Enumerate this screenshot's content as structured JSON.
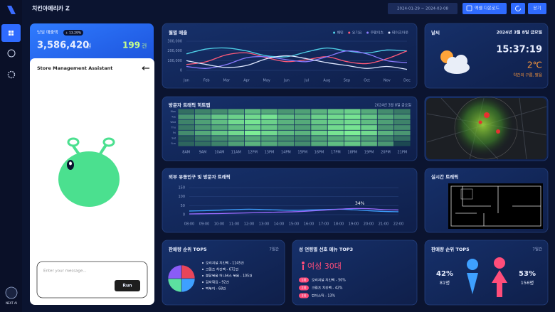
{
  "header": {
    "title": "치킨아메리카 Z",
    "date_range": "2024-01-29 ~ 2024-03-08",
    "excel_button": "엑셀 다운로드",
    "close_button": "닫기"
  },
  "sidebar": {
    "brand": "NEXT AI"
  },
  "sales_card": {
    "label": "당일 매출액",
    "change": "+ 13.29%",
    "amount": "3,586,420",
    "amount_unit": "원",
    "count": "199",
    "count_unit": "건"
  },
  "assistant": {
    "title": "Store Management Assistant",
    "placeholder": "Enter your message...",
    "run_button": "Run"
  },
  "weather": {
    "title": "날씨",
    "date": "2024년 3월 8일 금요일",
    "time": "15:37:19",
    "temperature": "2℃",
    "condition": "약간의 구름, 맑음"
  },
  "map_panel": {},
  "realtime": {
    "title": "실시간 트래픽"
  },
  "top5": {
    "title": "판매량 순위 TOP5",
    "period": "7일간",
    "items": [
      "오리지널 치킨팩 - 1145건",
      "크림즈 치킨팩 - 672건",
      "불닭볶음 허니버스 볶음 - 105건",
      "감자튀김 - 92건",
      "떡볶이 - 68건"
    ]
  },
  "preference": {
    "title": "성 연령별 선호 메뉴 TOP3",
    "segment": "여성 30대",
    "ranks": [
      {
        "rank": "1위",
        "text": "오리지널 치킨팩 - 50%"
      },
      {
        "rank": "2위",
        "text": "크림즈 치킨팩 - 42%"
      },
      {
        "rank": "3위",
        "text": "런더스틱 - 13%"
      }
    ]
  },
  "gender": {
    "title": "판매량 순위 TOP5",
    "period": "7일간",
    "male_pct": "42%",
    "male_count": "81명",
    "female_pct": "53%",
    "female_count": "156명"
  },
  "chart_data": [
    {
      "type": "line",
      "title": "월별 매출",
      "categories": [
        "Jan",
        "Feb",
        "Mar",
        "Apr",
        "May",
        "Jun",
        "Jul",
        "Aug",
        "Sep",
        "Oct",
        "Nov",
        "Dec"
      ],
      "series": [
        {
          "name": "배민",
          "color": "#4fd1e8",
          "values": [
            170000,
            220000,
            230000,
            200000,
            150000,
            140000,
            190000,
            230000,
            200000,
            180000,
            210000,
            200000
          ]
        },
        {
          "name": "요기요",
          "color": "#ff5a7a",
          "values": [
            60000,
            90000,
            160000,
            180000,
            130000,
            90000,
            110000,
            140000,
            90000,
            70000,
            120000,
            200000
          ]
        },
        {
          "name": "쿠팡이츠",
          "color": "#8a7bff",
          "values": [
            40000,
            20000,
            60000,
            130000,
            140000,
            110000,
            90000,
            140000,
            200000,
            170000,
            100000,
            80000
          ]
        },
        {
          "name": "테이크아웃",
          "color": "#dfe8ff",
          "values": [
            100000,
            60000,
            30000,
            50000,
            120000,
            150000,
            120000,
            80000,
            50000,
            20000,
            40000,
            10000
          ]
        }
      ],
      "ylim": [
        0,
        300000
      ],
      "yticks": [
        0,
        {
          "value": 100000,
          "label": "100,000"
        },
        {
          "value": 200000,
          "label": "200,000"
        },
        {
          "value": 300000,
          "label": "300,000"
        }
      ],
      "grid": true
    },
    {
      "type": "heatmap",
      "title": "방문자 트래픽 히트맵",
      "subtitle": "2024년 3월 8일 금요일",
      "categories": [
        "8AM",
        "9AM",
        "10AM",
        "11AM",
        "12PM",
        "13PM",
        "14PM",
        "15PM",
        "16PM",
        "17PM",
        "18PM",
        "19PM",
        "20PM",
        "21PM"
      ],
      "rows": [
        "Mon",
        "Tue",
        "Wed",
        "Thu",
        "Fri",
        "Sat",
        "Sun"
      ],
      "values": [
        [
          30,
          40,
          45,
          55,
          70,
          60,
          50,
          55,
          65,
          75,
          80,
          60,
          45,
          35
        ],
        [
          50,
          60,
          75,
          80,
          85,
          90,
          70,
          65,
          80,
          85,
          90,
          75,
          60,
          50
        ],
        [
          40,
          55,
          70,
          85,
          90,
          80,
          65,
          60,
          75,
          80,
          85,
          70,
          55,
          40
        ],
        [
          35,
          50,
          60,
          70,
          80,
          75,
          60,
          55,
          70,
          85,
          90,
          80,
          50,
          45
        ],
        [
          45,
          60,
          75,
          85,
          95,
          85,
          70,
          65,
          80,
          90,
          95,
          85,
          65,
          50
        ],
        [
          20,
          35,
          45,
          50,
          60,
          55,
          45,
          40,
          55,
          60,
          70,
          55,
          40,
          30
        ],
        [
          25,
          30,
          40,
          55,
          65,
          60,
          50,
          45,
          60,
          70,
          75,
          65,
          50,
          10
        ]
      ]
    },
    {
      "type": "line",
      "title": "외부 유동인구 및 방문자 트래픽",
      "categories": [
        "08:00",
        "09:00",
        "10:00",
        "11:00",
        "12:00",
        "13:00",
        "14:00",
        "15:00",
        "16:00",
        "17:00",
        "18:00",
        "19:00",
        "20:00",
        "21:00",
        "22:00"
      ],
      "series": [
        {
          "color": "#3ea0ff",
          "values": [
            20,
            22,
            25,
            28,
            30,
            28,
            26,
            24,
            26,
            28,
            30,
            27,
            22,
            18,
            16
          ]
        },
        {
          "color": "#9a6bff",
          "values": [
            4,
            5,
            6,
            8,
            10,
            12,
            14,
            16,
            20,
            25,
            30,
            34,
            33,
            28,
            26
          ]
        }
      ],
      "annotation": "34%",
      "ylim": [
        0,
        150
      ],
      "yticks": [
        0,
        50,
        100,
        150
      ],
      "grid": true
    },
    {
      "type": "pie",
      "values": [
        25,
        25,
        25,
        25
      ],
      "colors": [
        "#e8455a",
        "#3ea0ff",
        "#5ce0a0",
        "#8a5cf6"
      ]
    }
  ]
}
